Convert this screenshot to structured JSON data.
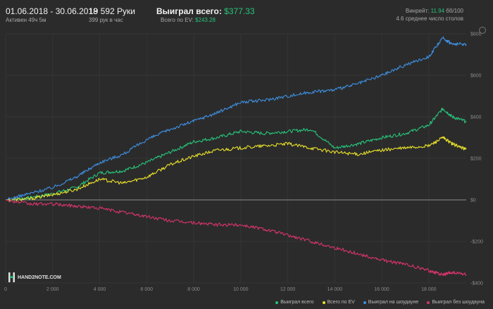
{
  "header": {
    "date_range": "01.06.2018 - 30.06.2018",
    "active": "Активен 49ч 5м",
    "hands": "19 592 Руки",
    "hands_per_hour": "399 рук в час",
    "won_total_label": "Выиграл всего:",
    "won_total_value": "$377.33",
    "ev_label": "Всего по EV:",
    "ev_value": "$243.28",
    "winrate_label": "Винрейт:",
    "winrate_value": "11.94",
    "winrate_unit": "бб/100",
    "tables": "4.6 среднее число столов"
  },
  "logo": {
    "text": "HAND2NOTE.COM"
  },
  "colors": {
    "green": "#27c37a",
    "yellow": "#e8e02a",
    "blue": "#3d8fe0",
    "red": "#d9346a",
    "background": "#2b2b2b"
  },
  "chart_data": {
    "type": "line",
    "xlim": [
      0,
      19592
    ],
    "ylim": [
      -400,
      800
    ],
    "x_ticks": [
      0,
      2000,
      4000,
      6000,
      8000,
      10000,
      12000,
      14000,
      16000,
      18000
    ],
    "x_tick_labels": [
      "0",
      "2 000",
      "4 000",
      "6 000",
      "8 000",
      "10 000",
      "12 000",
      "14 000",
      "16 000",
      "18 000"
    ],
    "y_ticks": [
      -400,
      -200,
      0,
      200,
      400,
      600,
      800
    ],
    "y_tick_labels": [
      "-$400",
      "-$200",
      "$0",
      "$200",
      "$400",
      "$600",
      "$800"
    ],
    "legend_position": "bottom-right",
    "x": [
      0,
      1000,
      2000,
      3000,
      4000,
      5000,
      6000,
      7000,
      8000,
      9000,
      10000,
      11000,
      12000,
      13000,
      14000,
      15000,
      16000,
      17000,
      18000,
      18600,
      19000,
      19592
    ],
    "series": [
      {
        "name": "Выиграл всего",
        "color": "#27c37a",
        "values": [
          0,
          10,
          30,
          60,
          130,
          140,
          180,
          230,
          280,
          300,
          330,
          320,
          330,
          340,
          250,
          270,
          300,
          320,
          360,
          440,
          400,
          377
        ]
      },
      {
        "name": "Всего по EV",
        "color": "#e8e02a",
        "values": [
          0,
          5,
          25,
          50,
          100,
          80,
          110,
          170,
          210,
          240,
          250,
          260,
          270,
          250,
          230,
          220,
          240,
          250,
          260,
          300,
          270,
          243
        ]
      },
      {
        "name": "Выиграл на шоудауне",
        "color": "#3d8fe0",
        "values": [
          0,
          30,
          60,
          110,
          180,
          220,
          290,
          340,
          380,
          420,
          470,
          480,
          500,
          520,
          530,
          560,
          600,
          650,
          690,
          780,
          750,
          750
        ]
      },
      {
        "name": "Выиграл без шоудауна",
        "color": "#d9346a",
        "values": [
          0,
          -20,
          -20,
          -30,
          -40,
          -60,
          -80,
          -100,
          -110,
          -120,
          -120,
          -140,
          -170,
          -200,
          -230,
          -260,
          -290,
          -310,
          -340,
          -360,
          -350,
          -360
        ]
      }
    ]
  }
}
